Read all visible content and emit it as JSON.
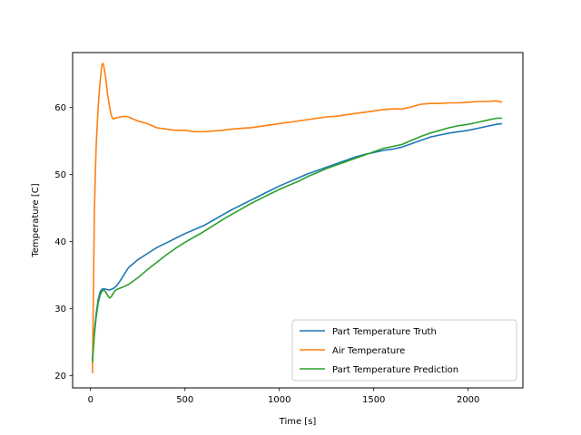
{
  "chart_data": {
    "type": "line",
    "title": "",
    "xlabel": "Time [s]",
    "ylabel": "Temperature [C]",
    "xlim": [
      -95,
      2290
    ],
    "ylim": [
      18.2,
      68.2
    ],
    "xticks": [
      0,
      500,
      1000,
      1500,
      2000
    ],
    "yticks": [
      20,
      30,
      40,
      50,
      60
    ],
    "grid": false,
    "legend_position": "lower-right",
    "series": [
      {
        "name": "Part Temperature Truth",
        "color": "#1f77b4",
        "x": [
          10,
          20,
          30,
          40,
          50,
          60,
          70,
          80,
          100,
          120,
          140,
          160,
          180,
          200,
          250,
          300,
          350,
          400,
          450,
          500,
          550,
          600,
          650,
          700,
          750,
          800,
          850,
          900,
          950,
          1000,
          1050,
          1100,
          1150,
          1200,
          1250,
          1300,
          1350,
          1400,
          1450,
          1500,
          1550,
          1600,
          1650,
          1700,
          1750,
          1800,
          1850,
          1900,
          1950,
          2000,
          2050,
          2100,
          2150,
          2180
        ],
        "y": [
          22.3,
          26.5,
          29.3,
          31.3,
          32.5,
          32.9,
          33.0,
          32.9,
          32.8,
          33.0,
          33.5,
          34.3,
          35.2,
          36.1,
          37.3,
          38.2,
          39.1,
          39.8,
          40.5,
          41.2,
          41.8,
          42.4,
          43.2,
          44.0,
          44.8,
          45.5,
          46.2,
          46.9,
          47.6,
          48.3,
          48.9,
          49.5,
          50.1,
          50.6,
          51.1,
          51.6,
          52.1,
          52.6,
          53.0,
          53.3,
          53.6,
          53.8,
          54.1,
          54.6,
          55.1,
          55.6,
          55.9,
          56.2,
          56.4,
          56.6,
          56.9,
          57.2,
          57.5,
          57.6
        ]
      },
      {
        "name": "Air Temperature",
        "color": "#ff7f0e",
        "x": [
          10,
          15,
          20,
          25,
          30,
          40,
          50,
          60,
          65,
          70,
          80,
          90,
          100,
          110,
          120,
          140,
          160,
          180,
          200,
          250,
          300,
          350,
          400,
          450,
          500,
          550,
          600,
          650,
          700,
          750,
          800,
          850,
          900,
          950,
          1000,
          1050,
          1100,
          1150,
          1200,
          1250,
          1300,
          1350,
          1400,
          1450,
          1500,
          1550,
          1600,
          1650,
          1700,
          1750,
          1800,
          1850,
          1900,
          1950,
          2000,
          2050,
          2100,
          2150,
          2180
        ],
        "y": [
          20.4,
          32,
          44,
          50,
          54.5,
          60,
          63.8,
          66.3,
          66.6,
          66.2,
          64.5,
          62,
          60.2,
          58.8,
          58.3,
          58.5,
          58.6,
          58.7,
          58.6,
          58.0,
          57.6,
          57.0,
          56.8,
          56.6,
          56.6,
          56.4,
          56.4,
          56.5,
          56.6,
          56.8,
          56.9,
          57.0,
          57.2,
          57.4,
          57.6,
          57.8,
          58.0,
          58.2,
          58.4,
          58.6,
          58.7,
          58.9,
          59.1,
          59.3,
          59.5,
          59.7,
          59.8,
          59.8,
          60.1,
          60.5,
          60.6,
          60.6,
          60.7,
          60.7,
          60.8,
          60.9,
          60.9,
          61.0,
          60.8
        ]
      },
      {
        "name": "Part Temperature Prediction",
        "color": "#2ca02c",
        "x": [
          10,
          20,
          30,
          40,
          50,
          60,
          70,
          80,
          90,
          100,
          110,
          120,
          130,
          140,
          150,
          175,
          200,
          250,
          300,
          350,
          400,
          450,
          500,
          550,
          600,
          650,
          700,
          750,
          800,
          850,
          900,
          950,
          1000,
          1050,
          1100,
          1150,
          1200,
          1250,
          1300,
          1350,
          1400,
          1450,
          1500,
          1550,
          1600,
          1650,
          1700,
          1750,
          1800,
          1850,
          1900,
          1950,
          2000,
          2050,
          2100,
          2150,
          2180
        ],
        "y": [
          22.0,
          26.0,
          28.8,
          30.8,
          32.0,
          32.6,
          32.8,
          32.5,
          32.0,
          31.6,
          31.8,
          32.3,
          32.7,
          32.9,
          33.0,
          33.3,
          33.6,
          34.6,
          35.8,
          36.9,
          38.0,
          39.0,
          39.9,
          40.7,
          41.5,
          42.4,
          43.3,
          44.1,
          44.9,
          45.7,
          46.4,
          47.1,
          47.8,
          48.4,
          49.0,
          49.7,
          50.3,
          50.9,
          51.4,
          51.9,
          52.4,
          52.9,
          53.4,
          53.9,
          54.2,
          54.5,
          55.1,
          55.7,
          56.2,
          56.6,
          57.0,
          57.3,
          57.5,
          57.8,
          58.1,
          58.4,
          58.4
        ]
      }
    ]
  }
}
